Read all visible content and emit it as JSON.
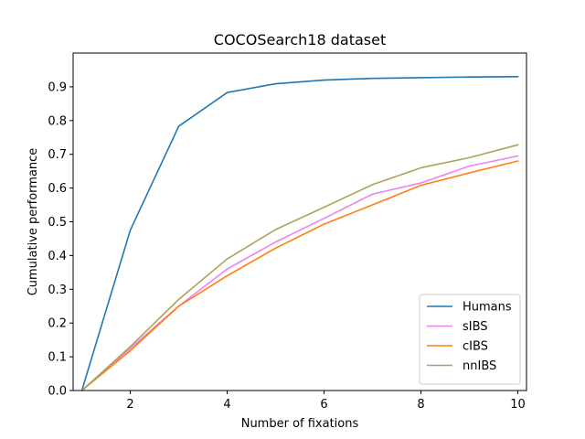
{
  "chart_data": {
    "type": "line",
    "title": "COCOSearch18 dataset",
    "xlabel": "Number of fixations",
    "ylabel": "Cumulative performance",
    "xlim": [
      0.82,
      10.18
    ],
    "ylim": [
      0.0,
      1.0
    ],
    "xticks": [
      2,
      4,
      6,
      8,
      10
    ],
    "yticks": [
      0.0,
      0.1,
      0.2,
      0.3,
      0.4,
      0.5,
      0.6,
      0.7,
      0.8,
      0.9
    ],
    "grid": false,
    "legend_position": "lower-right",
    "x": [
      1,
      2,
      3,
      4,
      5,
      6,
      7,
      8,
      9,
      10
    ],
    "series": [
      {
        "name": "Humans",
        "color": "#1f77b4",
        "values": [
          0.0,
          0.475,
          0.783,
          0.883,
          0.909,
          0.92,
          0.925,
          0.927,
          0.929,
          0.93
        ]
      },
      {
        "name": "sIBS",
        "color": "#ee82ee",
        "values": [
          0.0,
          0.125,
          0.25,
          0.36,
          0.44,
          0.51,
          0.582,
          0.615,
          0.665,
          0.695
        ]
      },
      {
        "name": "cIBS",
        "color": "#ff7f0e",
        "values": [
          0.0,
          0.118,
          0.25,
          0.34,
          0.422,
          0.493,
          0.55,
          0.608,
          0.645,
          0.68
        ]
      },
      {
        "name": "nnIBS",
        "color": "#aca35e",
        "values": [
          0.0,
          0.13,
          0.27,
          0.39,
          0.477,
          0.543,
          0.61,
          0.66,
          0.69,
          0.728
        ]
      }
    ]
  }
}
